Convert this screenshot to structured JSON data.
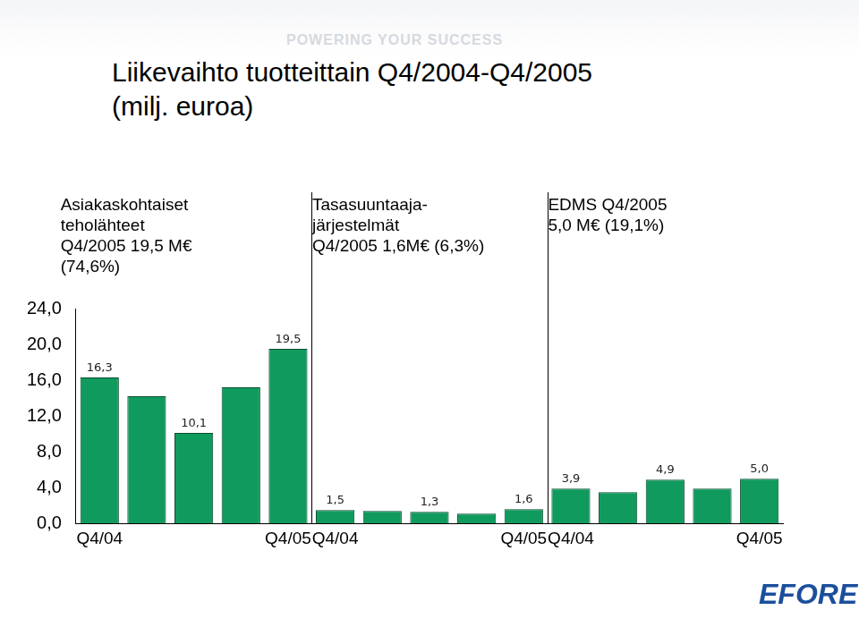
{
  "page": {
    "tagline": "POWERING YOUR SUCCESS",
    "logo": "EFORE"
  },
  "chart_data": {
    "type": "bar",
    "title": [
      "Liikevaihto tuotteittain Q4/2004-Q4/2005",
      "(milj. euroa)"
    ],
    "annotations": [
      [
        "Asiakaskohtaiset",
        "teholähteet",
        "Q4/2005 19,5 M€",
        "(74,6%)"
      ],
      [
        "Tasasuuntaaja-",
        "järjestelmät",
        "Q4/2005 1,6M€ (6,3%)"
      ],
      [
        "EDMS Q4/2005",
        "5,0 M€ (19,1%)"
      ]
    ],
    "categories": [
      "Q4/04",
      null,
      null,
      null,
      "Q4/05",
      "Q4/04",
      null,
      null,
      null,
      "Q4/05",
      "Q4/04",
      null,
      null,
      null,
      "Q4/05"
    ],
    "values": [
      16.3,
      14.2,
      10.1,
      15.2,
      19.5,
      1.5,
      1.4,
      1.3,
      1.1,
      1.6,
      3.9,
      3.5,
      4.9,
      3.9,
      5.0
    ],
    "value_labels": [
      "16,3",
      null,
      "10,1",
      null,
      "19,5",
      "1,5",
      null,
      "1,3",
      null,
      "1,6",
      "3,9",
      null,
      "4,9",
      null,
      "5,0"
    ],
    "data_labels": true,
    "color": "#109a5e",
    "ylim": [
      0,
      24
    ],
    "yticks": [
      {
        "value": 0,
        "label": "0,0"
      },
      {
        "value": 4,
        "label": "4,0"
      },
      {
        "value": 8,
        "label": "8,0"
      },
      {
        "value": 12,
        "label": "12,0"
      },
      {
        "value": 16,
        "label": "16,0"
      },
      {
        "value": 20,
        "label": "20,0"
      },
      {
        "value": 24,
        "label": "24,0"
      }
    ],
    "grid": false
  }
}
